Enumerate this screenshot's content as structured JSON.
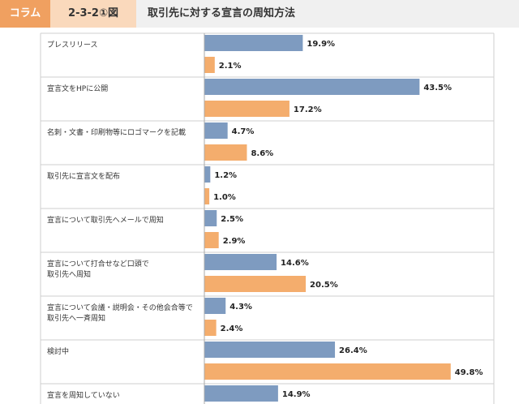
{
  "header": {
    "tag": "コラム",
    "figure_number": "2-3-2①図",
    "title": "取引先に対する宣言の周知方法"
  },
  "colors": {
    "series1": "#7e9bc0",
    "series2": "#f4ad6d",
    "tag": "#f0a060",
    "grid": "#cfcfcf"
  },
  "chart_data": {
    "type": "bar",
    "orientation": "horizontal",
    "categories": [
      [
        "プレスリリース"
      ],
      [
        "宣言文をHPに公開"
      ],
      [
        "名刺・文書・印刷物等にロゴマークを記載"
      ],
      [
        "取引先に宣言文を配布"
      ],
      [
        "宣言について取引先へメールで周知"
      ],
      [
        "宣言について打合せなど口頭で",
        "取引先へ周知"
      ],
      [
        "宣言について会議・説明会・その他会合等で",
        "取引先へ一斉周知"
      ],
      [
        "検討中"
      ],
      [
        "宣言を周知していない"
      ]
    ],
    "series": [
      {
        "values": [
          19.9,
          43.5,
          4.7,
          1.2,
          2.5,
          14.6,
          4.3,
          26.4,
          14.9
        ],
        "labels": [
          "19.9%",
          "43.5%",
          "4.7%",
          "1.2%",
          "2.5%",
          "14.6%",
          "4.3%",
          "26.4%",
          "14.9%"
        ]
      },
      {
        "values": [
          2.1,
          17.2,
          8.6,
          1.0,
          2.9,
          20.5,
          2.4,
          49.8,
          null
        ],
        "labels": [
          "2.1%",
          "17.2%",
          "8.6%",
          "1.0%",
          "2.9%",
          "20.5%",
          "2.4%",
          "49.8%",
          ""
        ]
      }
    ],
    "xlim": [
      0,
      50
    ],
    "grid": false
  }
}
